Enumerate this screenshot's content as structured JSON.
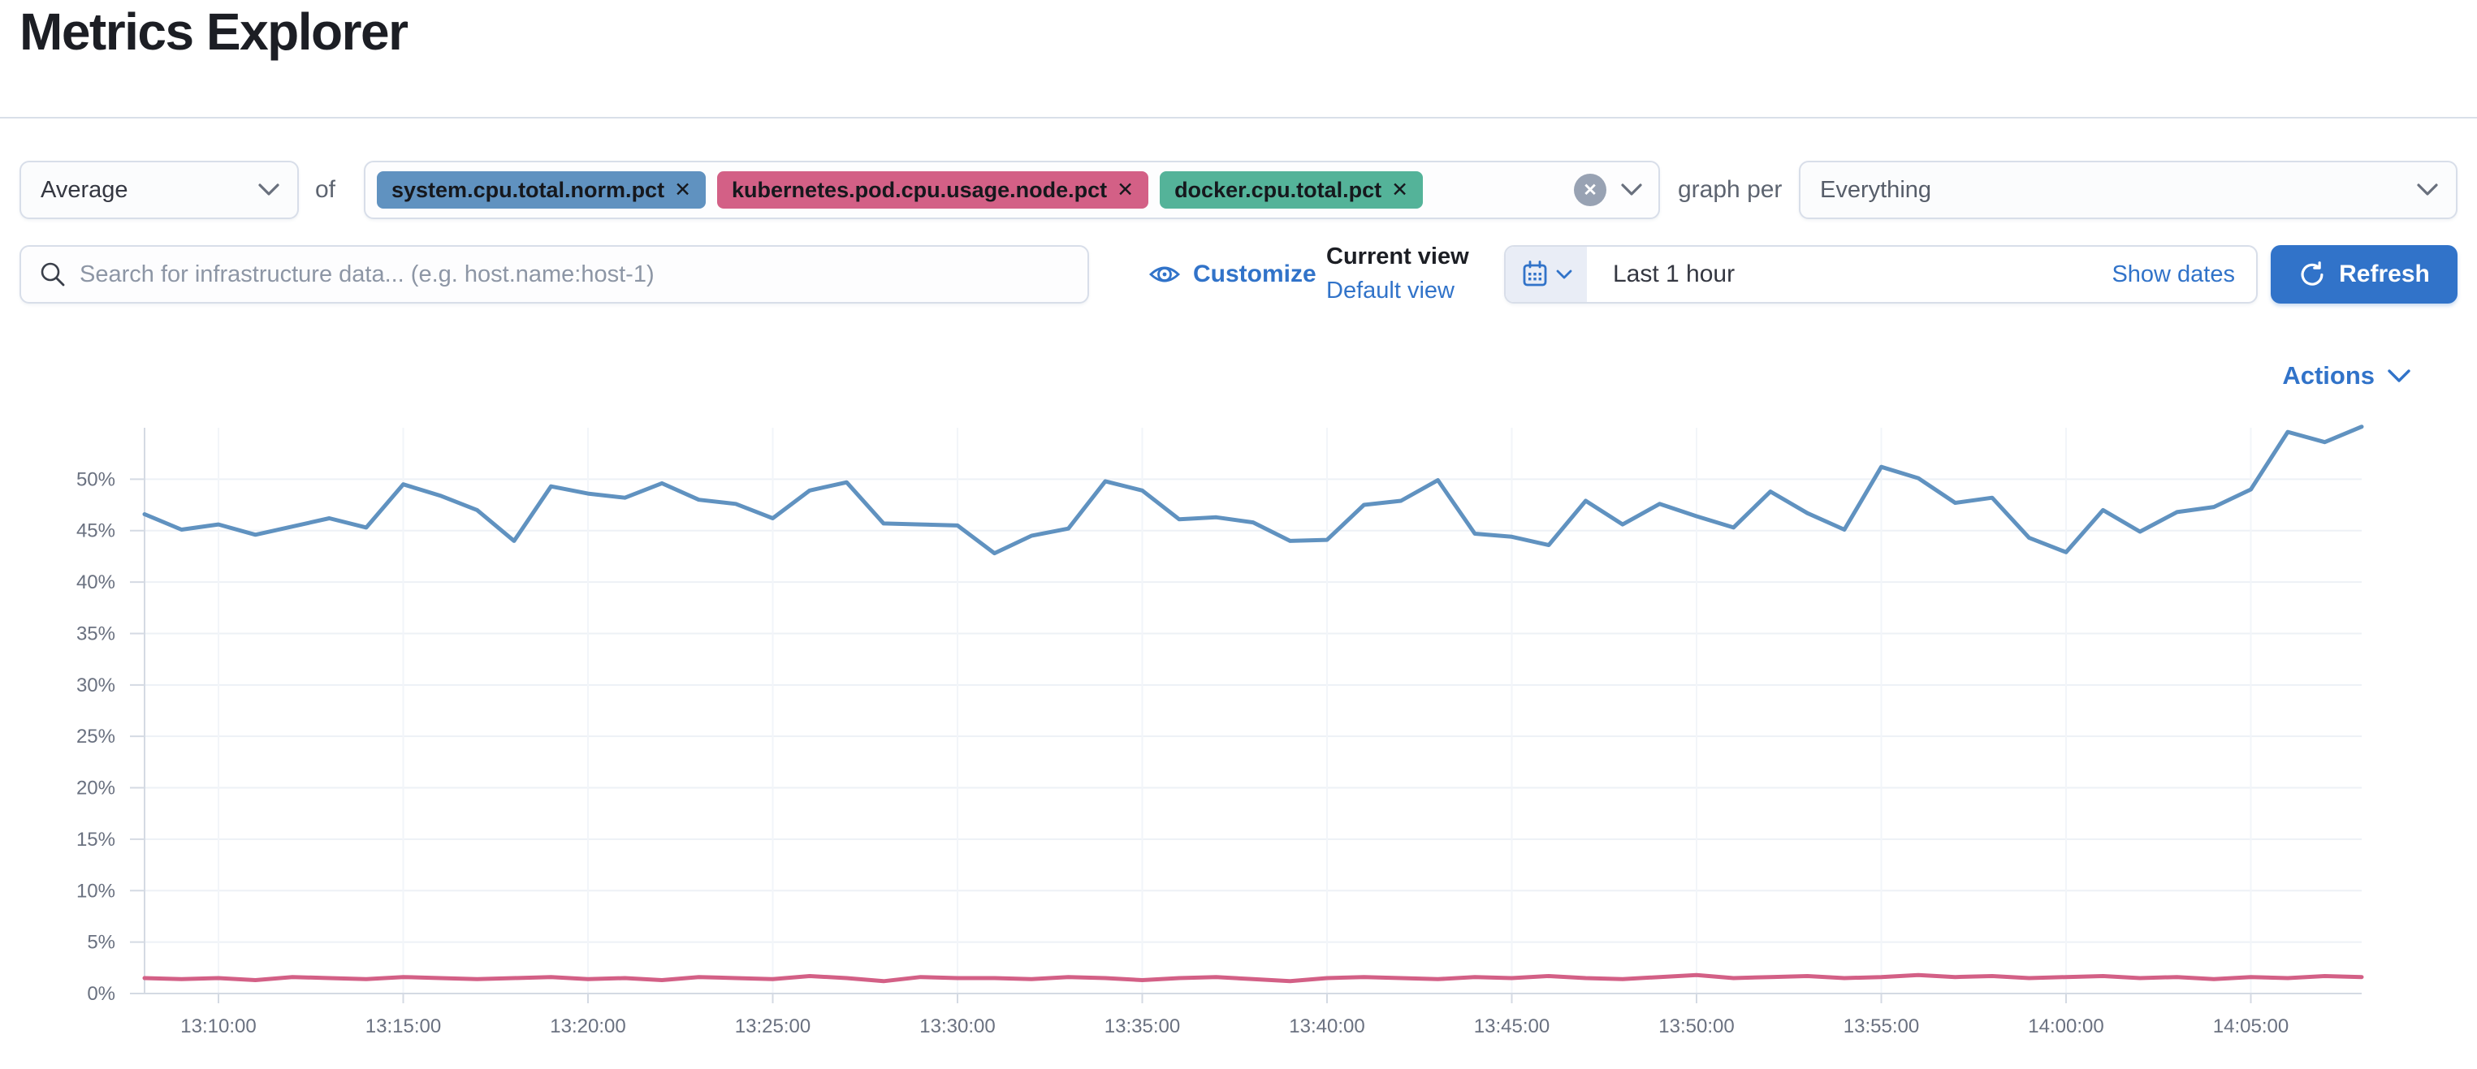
{
  "page": {
    "title": "Metrics Explorer"
  },
  "colors": {
    "primary": "#3173C9",
    "text_dark": "#1C1E24",
    "label_gray": "#5D6470",
    "axis_label": "#6A7180",
    "divider": "#D9DFE9"
  },
  "icons": {
    "remove": "✕",
    "clear": "✕"
  },
  "toolbar": {
    "aggregation": {
      "value": "Average"
    },
    "of_label": "of",
    "metrics": [
      {
        "label": "system.cpu.total.norm.pct",
        "color": "#6092C0"
      },
      {
        "label": "kubernetes.pod.cpu.usage.node.pct",
        "color": "#D36086"
      },
      {
        "label": "docker.cpu.total.pct",
        "color": "#54B399"
      }
    ],
    "graph_per_label": "graph per",
    "group_by": {
      "value": "Everything"
    }
  },
  "filter_bar": {
    "search": {
      "placeholder": "Search for infrastructure data... (e.g. host.name:host-1)",
      "value": ""
    },
    "customize_label": "Customize",
    "view_picker": {
      "current_label": "Current view",
      "default_label": "Default view"
    },
    "time_picker": {
      "value": "Last 1 hour",
      "show_dates_label": "Show dates"
    },
    "refresh_label": "Refresh"
  },
  "chart_header": {
    "actions_label": "Actions"
  },
  "chart_data": {
    "type": "line",
    "unit": "%",
    "ylim": [
      0,
      55
    ],
    "yticks": [
      0,
      5,
      10,
      15,
      20,
      25,
      30,
      35,
      40,
      45,
      50
    ],
    "x_start": "13:08:00",
    "x_step_seconds": 60,
    "x_tick_labels": [
      "13:10:00",
      "13:15:00",
      "13:20:00",
      "13:25:00",
      "13:30:00",
      "13:35:00",
      "13:40:00",
      "13:45:00",
      "13:50:00",
      "13:55:00",
      "14:00:00",
      "14:05:00"
    ],
    "x_tick_start_index": 2,
    "x_tick_step": 5,
    "grid": true,
    "legend": "none",
    "series": [
      {
        "name": "system.cpu.total.norm.pct",
        "color": "#6092C0",
        "values": [
          46.6,
          45.1,
          45.6,
          44.6,
          45.4,
          46.2,
          45.3,
          49.5,
          48.4,
          47.0,
          44.0,
          49.3,
          48.6,
          48.2,
          49.6,
          48.0,
          47.6,
          46.2,
          48.9,
          49.7,
          45.7,
          45.6,
          45.5,
          42.8,
          44.5,
          45.2,
          49.8,
          48.9,
          46.1,
          46.3,
          45.8,
          44.0,
          44.1,
          47.5,
          47.9,
          49.9,
          44.7,
          44.4,
          43.6,
          47.9,
          45.6,
          47.6,
          46.4,
          45.3,
          48.8,
          46.7,
          45.1,
          51.2,
          50.1,
          47.7,
          48.2,
          44.3,
          42.9,
          47.0,
          44.9,
          46.8,
          47.3,
          49.0,
          54.6,
          53.6,
          55.1
        ]
      },
      {
        "name": "kubernetes.pod.cpu.usage.node.pct",
        "color": "#D36086",
        "values": [
          1.5,
          1.4,
          1.5,
          1.3,
          1.6,
          1.5,
          1.4,
          1.6,
          1.5,
          1.4,
          1.5,
          1.6,
          1.4,
          1.5,
          1.3,
          1.6,
          1.5,
          1.4,
          1.7,
          1.5,
          1.2,
          1.6,
          1.5,
          1.5,
          1.4,
          1.6,
          1.5,
          1.3,
          1.5,
          1.6,
          1.4,
          1.2,
          1.5,
          1.6,
          1.5,
          1.4,
          1.6,
          1.5,
          1.7,
          1.5,
          1.4,
          1.6,
          1.8,
          1.5,
          1.6,
          1.7,
          1.5,
          1.6,
          1.8,
          1.6,
          1.7,
          1.5,
          1.6,
          1.7,
          1.5,
          1.6,
          1.4,
          1.6,
          1.5,
          1.7,
          1.6
        ]
      }
    ]
  }
}
